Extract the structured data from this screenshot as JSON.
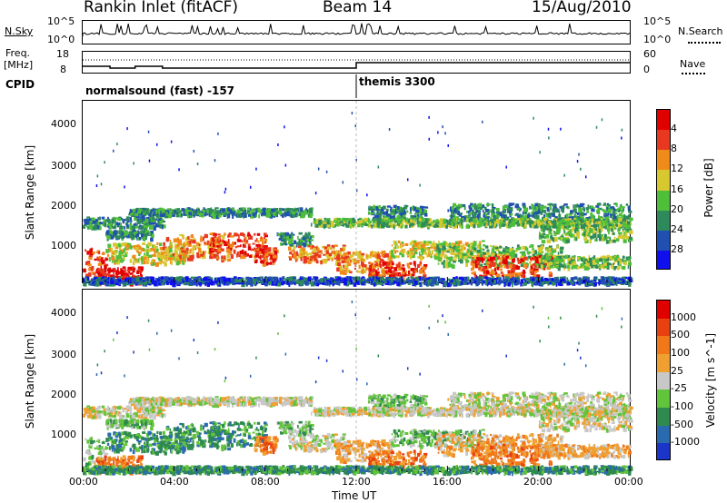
{
  "header": {
    "station": "Rankin Inlet (fitACF)",
    "beam": "Beam 14",
    "date": "15/Aug/2010"
  },
  "panels": {
    "nsky_label": "N.Sky",
    "nsky_ticks": [
      "10^5",
      "10^0"
    ],
    "nsearch_label": "N.Search",
    "nsearch_ticks": [
      "10^5",
      "10^0"
    ],
    "freq_label_line1": "Freq.",
    "freq_label_line2": "[MHz]",
    "freq_ticks": [
      "18",
      "8"
    ],
    "nave_label": "Nave",
    "nave_ticks": [
      "60",
      "0"
    ],
    "cpid_label": "CPID",
    "cpid_modes": [
      "normalsound (fast) -157",
      "themis 3300"
    ]
  },
  "chart_data": [
    {
      "type": "heatmap",
      "name": "power",
      "ylabel": "Slant Range [km]",
      "yticks": [
        "1000",
        "2000",
        "3000",
        "4000"
      ],
      "ylim": [
        180,
        4550
      ],
      "colorbar": {
        "label": "Power [dB]",
        "ticks": [
          "4",
          "8",
          "12",
          "16",
          "20",
          "24",
          "28"
        ],
        "colors": [
          "#1010ee",
          "#2050b0",
          "#2e8a5a",
          "#4fbf3a",
          "#d8c830",
          "#f08a1a",
          "#e83820",
          "#e00000"
        ]
      }
    },
    {
      "type": "heatmap",
      "name": "velocity",
      "ylabel": "Slant Range [km]",
      "yticks": [
        "1000",
        "2000",
        "3000",
        "4000"
      ],
      "ylim": [
        180,
        4550
      ],
      "colorbar": {
        "label": "Velocity [m s^-1]",
        "ticks": [
          "1000",
          "500",
          "100",
          "25",
          "-25",
          "-100",
          "-500",
          "-1000"
        ],
        "colors": [
          "#1a35c8",
          "#2a6ab0",
          "#2e8a4e",
          "#62c43a",
          "#c8c8c8",
          "#f0a030",
          "#f07818",
          "#e84010",
          "#e00000"
        ]
      }
    }
  ],
  "xaxis": {
    "label": "Time UT",
    "ticks": [
      "00:00",
      "04:00",
      "08:00",
      "12:00",
      "16:00",
      "20:00",
      "00:00"
    ]
  }
}
